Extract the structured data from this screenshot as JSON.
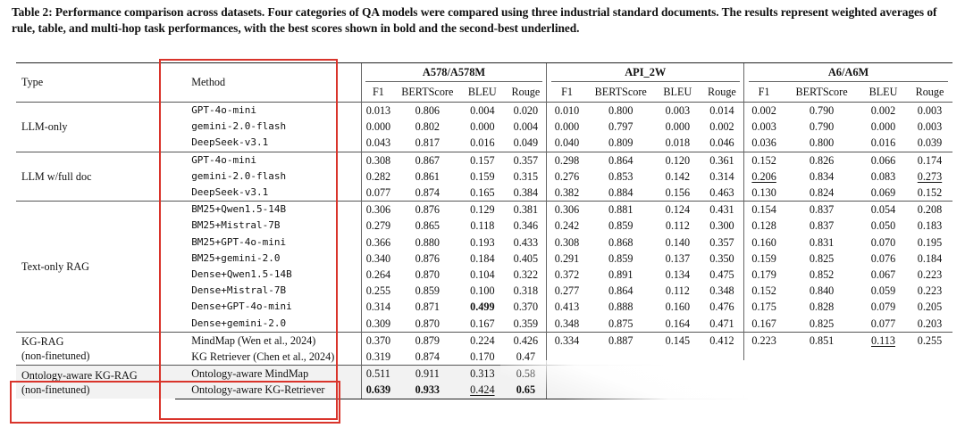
{
  "caption": "Table 2: Performance comparison across datasets. Four categories of QA models were compared using three industrial standard documents. The results represent weighted averages of rule, table, and multi-hop task performances, with the best scores shown in bold and the second-best underlined.",
  "header": {
    "type": "Type",
    "method": "Method",
    "datasets": [
      "A578/A578M",
      "API_2W",
      "A6/A6M"
    ],
    "metrics": [
      "F1",
      "BERTScore",
      "BLEU",
      "Rouge"
    ]
  },
  "groups": [
    {
      "type": "LLM-only",
      "rows": [
        {
          "method": "GPT-4o-mini",
          "mono": true,
          "values": [
            "0.013",
            "0.806",
            "0.004",
            "0.020",
            "0.010",
            "0.800",
            "0.003",
            "0.014",
            "0.002",
            "0.790",
            "0.002",
            "0.003"
          ]
        },
        {
          "method": "gemini-2.0-flash",
          "mono": true,
          "values": [
            "0.000",
            "0.802",
            "0.000",
            "0.004",
            "0.000",
            "0.797",
            "0.000",
            "0.002",
            "0.003",
            "0.790",
            "0.000",
            "0.003"
          ]
        },
        {
          "method": "DeepSeek-v3.1",
          "mono": true,
          "values": [
            "0.043",
            "0.817",
            "0.016",
            "0.049",
            "0.040",
            "0.809",
            "0.018",
            "0.046",
            "0.036",
            "0.800",
            "0.016",
            "0.039"
          ]
        }
      ]
    },
    {
      "type": "LLM w/full doc",
      "rows": [
        {
          "method": "GPT-4o-mini",
          "mono": true,
          "values": [
            "0.308",
            "0.867",
            "0.157",
            "0.357",
            "0.298",
            "0.864",
            "0.120",
            "0.361",
            "0.152",
            "0.826",
            "0.066",
            "0.174"
          ]
        },
        {
          "method": "gemini-2.0-flash",
          "mono": true,
          "values": [
            "0.282",
            "0.861",
            "0.159",
            "0.315",
            "0.276",
            "0.853",
            "0.142",
            "0.314",
            "0.206",
            "0.834",
            "0.083",
            "0.273"
          ]
        },
        {
          "method": "DeepSeek-v3.1",
          "mono": true,
          "values": [
            "0.077",
            "0.874",
            "0.165",
            "0.384",
            "0.382",
            "0.884",
            "0.156",
            "0.463",
            "0.130",
            "0.824",
            "0.069",
            "0.152"
          ]
        }
      ]
    },
    {
      "type": "Text-only RAG",
      "rows": [
        {
          "method": "BM25+Qwen1.5-14B",
          "mono": true,
          "values": [
            "0.306",
            "0.876",
            "0.129",
            "0.381",
            "0.306",
            "0.881",
            "0.124",
            "0.431",
            "0.154",
            "0.837",
            "0.054",
            "0.208"
          ]
        },
        {
          "method": "BM25+Mistral-7B",
          "mono": true,
          "values": [
            "0.279",
            "0.865",
            "0.118",
            "0.346",
            "0.242",
            "0.859",
            "0.112",
            "0.300",
            "0.128",
            "0.837",
            "0.050",
            "0.183"
          ]
        },
        {
          "method": "BM25+GPT-4o-mini",
          "mono": true,
          "values": [
            "0.366",
            "0.880",
            "0.193",
            "0.433",
            "0.308",
            "0.868",
            "0.140",
            "0.357",
            "0.160",
            "0.831",
            "0.070",
            "0.195"
          ]
        },
        {
          "method": "BM25+gemini-2.0",
          "mono": true,
          "values": [
            "0.340",
            "0.876",
            "0.184",
            "0.405",
            "0.291",
            "0.859",
            "0.137",
            "0.350",
            "0.159",
            "0.825",
            "0.076",
            "0.184"
          ]
        },
        {
          "method": "Dense+Qwen1.5-14B",
          "mono": true,
          "values": [
            "0.264",
            "0.870",
            "0.104",
            "0.322",
            "0.372",
            "0.891",
            "0.134",
            "0.475",
            "0.179",
            "0.852",
            "0.067",
            "0.223"
          ]
        },
        {
          "method": "Dense+Mistral-7B",
          "mono": true,
          "values": [
            "0.255",
            "0.859",
            "0.100",
            "0.318",
            "0.277",
            "0.864",
            "0.112",
            "0.348",
            "0.152",
            "0.840",
            "0.059",
            "0.223"
          ]
        },
        {
          "method": "Dense+GPT-4o-mini",
          "mono": true,
          "values": [
            "0.314",
            "0.871",
            "0.499",
            "0.370",
            "0.413",
            "0.888",
            "0.160",
            "0.476",
            "0.175",
            "0.828",
            "0.079",
            "0.205"
          ]
        },
        {
          "method": "Dense+gemini-2.0",
          "mono": true,
          "values": [
            "0.309",
            "0.870",
            "0.167",
            "0.359",
            "0.348",
            "0.875",
            "0.164",
            "0.471",
            "0.167",
            "0.825",
            "0.077",
            "0.203"
          ]
        }
      ]
    },
    {
      "type": "KG-RAG",
      "type2": "(non-finetuned)",
      "rows": [
        {
          "method": "MindMap (Wen et al., 2024)",
          "mono": false,
          "values": [
            "0.370",
            "0.879",
            "0.224",
            "0.426",
            "0.334",
            "0.887",
            "0.145",
            "0.412",
            "0.223",
            "0.851",
            "0.113",
            "0.255"
          ]
        },
        {
          "method": "KG Retriever (Chen et al., 2024)",
          "mono": false,
          "values": [
            "0.319",
            "0.874",
            "0.170",
            "0.47",
            "",
            "",
            "",
            "",
            "",
            "",
            "",
            ""
          ]
        }
      ]
    },
    {
      "type": "Ontology-aware KG-RAG",
      "type2": "(non-finetuned)",
      "highlight": true,
      "rows": [
        {
          "method": "Ontology-aware MindMap",
          "mono": false,
          "values": [
            "0.511",
            "0.911",
            "0.313",
            "0.58",
            "",
            "",
            "",
            "",
            "",
            "",
            "",
            ""
          ]
        },
        {
          "method": "Ontology-aware KG-Retriever",
          "mono": false,
          "values": [
            "0.639",
            "0.933",
            "0.424",
            "0.65",
            "",
            "",
            "",
            "",
            "",
            "",
            "",
            ""
          ]
        }
      ]
    }
  ],
  "formatting": {
    "bold": [
      "2.6.2",
      "4.1.0",
      "4.1.1",
      "4.1.3"
    ],
    "underline": [
      "1.1.8",
      "1.1.11",
      "3.0.10",
      "4.1.2"
    ]
  }
}
